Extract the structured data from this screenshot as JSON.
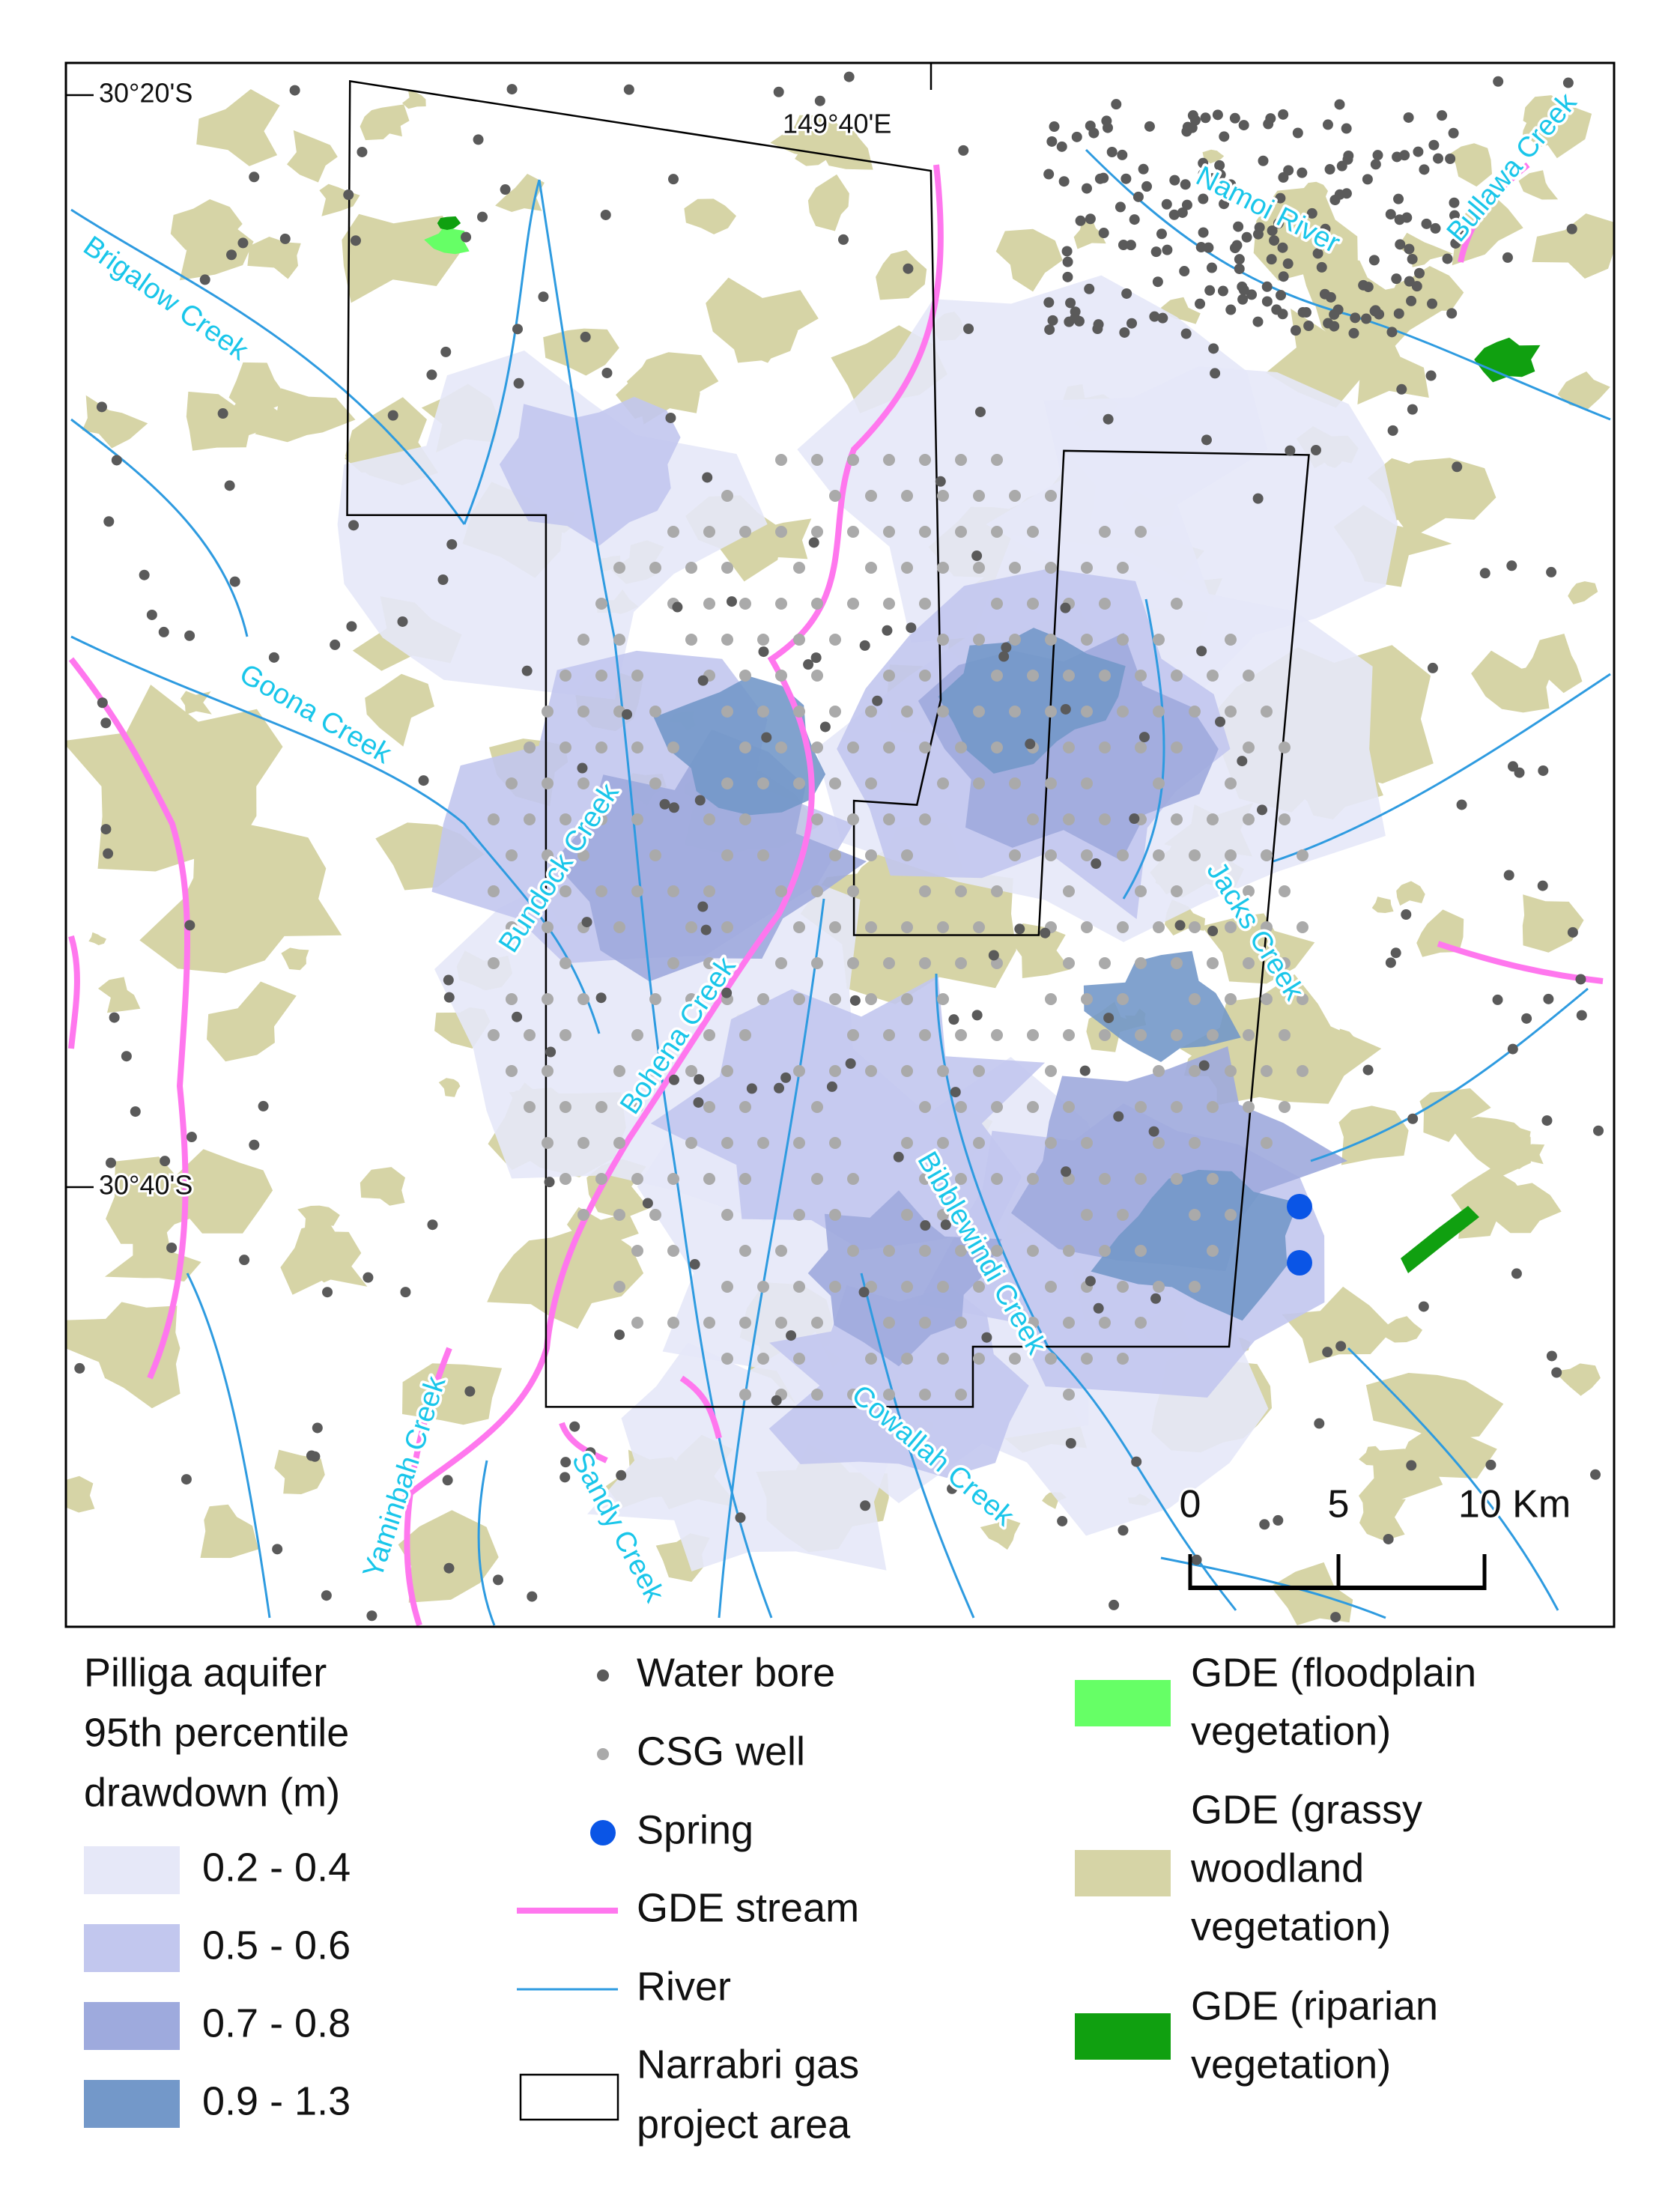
{
  "map": {
    "lat_labels": [
      "30°20'S",
      "30°40'S"
    ],
    "lon_labels": [
      "149°40'E"
    ],
    "features": [
      "Brigalow Creek",
      "Namoi River",
      "Bullawa Creek",
      "Goona Creek",
      "Bundock Creek",
      "Jacks Creek",
      "Bohena Creek",
      "Bibblewindi Creek",
      "Cowallah Creek",
      "Yaminbah Creek",
      "Sandy Creek"
    ],
    "scale_bar": {
      "labels": [
        "0",
        "5",
        "10 Km"
      ]
    }
  },
  "legend": {
    "drawdown": {
      "title_lines": [
        "Pilliga aquifer",
        "95th percentile",
        "drawdown (m)"
      ],
      "classes": [
        {
          "label": "0.2 - 0.4",
          "color": "#e6e8f8"
        },
        {
          "label": "0.5 - 0.6",
          "color": "#c2c7ee"
        },
        {
          "label": "0.7 - 0.8",
          "color": "#9eaadd"
        },
        {
          "label": "0.9 - 1.3",
          "color": "#7398c9"
        }
      ]
    },
    "symbols": [
      {
        "lines": [
          "Water bore"
        ],
        "color": "#5a5a5a"
      },
      {
        "lines": [
          "CSG well"
        ],
        "color": "#aaaaaa"
      },
      {
        "lines": [
          "Spring"
        ],
        "color": "#0a55e6"
      },
      {
        "lines": [
          "GDE stream"
        ],
        "color": "#ff77ee"
      },
      {
        "lines": [
          "River"
        ],
        "color": "#2e9be0"
      },
      {
        "lines": [
          "Narrabri gas",
          "project area"
        ],
        "color": "#000000"
      }
    ],
    "gde": [
      {
        "lines": [
          "GDE (floodplain",
          "vegetation)"
        ],
        "color": "#66ff66"
      },
      {
        "lines": [
          "GDE (grassy",
          "woodland",
          "vegetation)"
        ],
        "color": "#d6d4a6"
      },
      {
        "lines": [
          "GDE (riparian",
          "vegetation)"
        ],
        "color": "#10a010"
      }
    ]
  }
}
